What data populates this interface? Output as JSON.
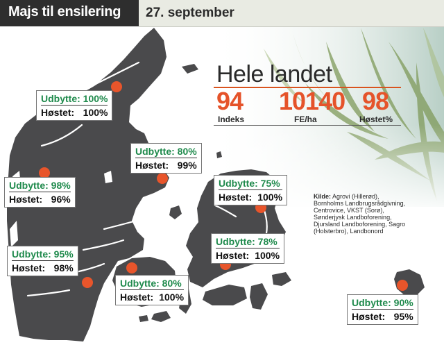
{
  "header": {
    "title": "Majs til ensilering",
    "date": "27. september"
  },
  "national": {
    "title": "Hele landet",
    "stats": [
      {
        "value": "94",
        "label": "Indeks"
      },
      {
        "value": "10140",
        "label": "FE/ha"
      },
      {
        "value": "98",
        "label": "Høstet%"
      }
    ]
  },
  "source": {
    "label": "Kilde:",
    "text": "Agrovi (Hillerød), Bornholms Landbrugsrådgivning, Centrovice, VKST (Sorø), Sønderjysk Landboforening, Djursland Landboforening, Sagro (Holsterbro), Landbonord"
  },
  "callout_labels": {
    "yield": "Udbytte:",
    "harvested": "Høstet:"
  },
  "regions": [
    {
      "yield": "100%",
      "harvested": "100%"
    },
    {
      "yield": "80%",
      "harvested": "99%"
    },
    {
      "yield": "98%",
      "harvested": "96%"
    },
    {
      "yield": "75%",
      "harvested": "100%"
    },
    {
      "yield": "78%",
      "harvested": "100%"
    },
    {
      "yield": "95%",
      "harvested": "98%"
    },
    {
      "yield": "80%",
      "harvested": "100%"
    },
    {
      "yield": "90%",
      "harvested": "95%"
    }
  ],
  "colors": {
    "map_land": "#4a4a4c",
    "accent": "#e5532a",
    "yield_text": "#1f8a4c",
    "header_bg": "#2e2e2e"
  },
  "icons": {
    "marker": "location-dot-icon",
    "background": "corn-field-photo"
  }
}
